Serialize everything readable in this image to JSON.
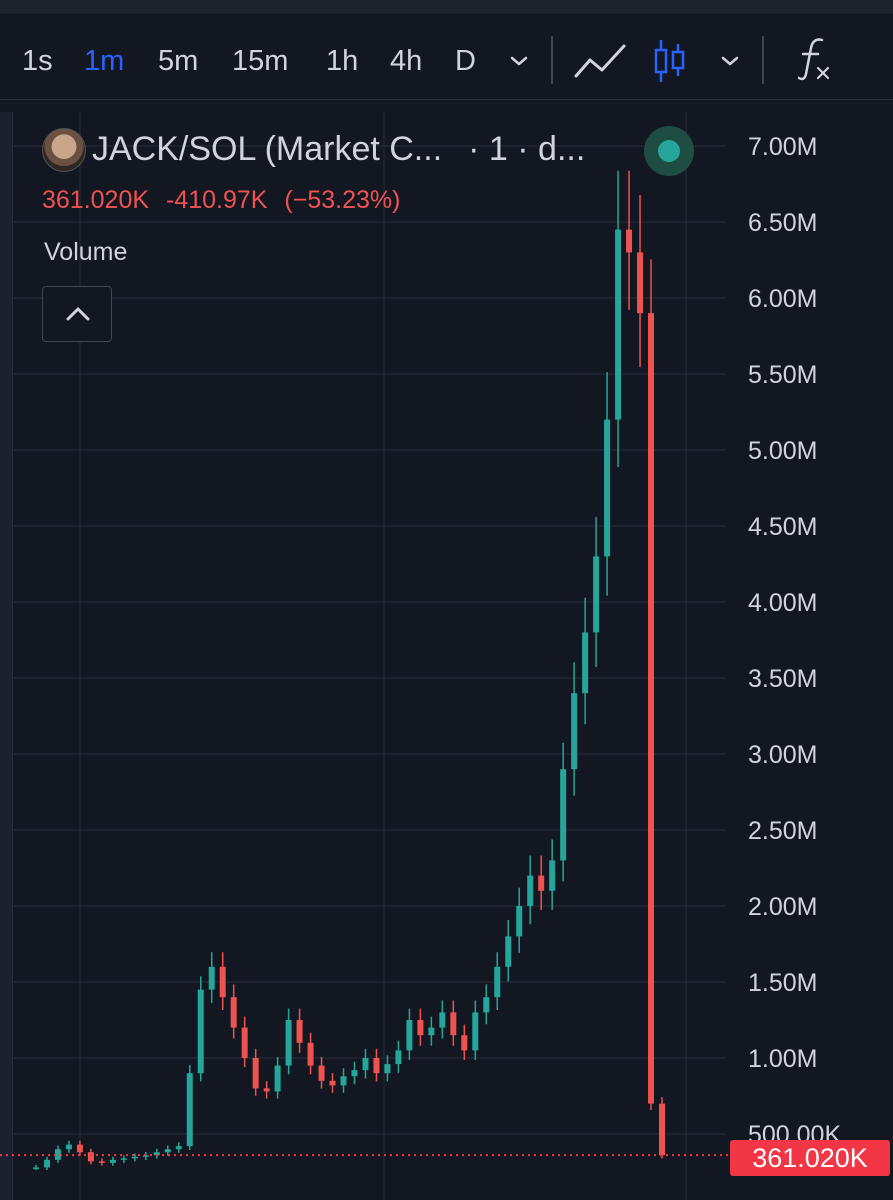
{
  "toolbar": {
    "timeframes": [
      "1s",
      "1m",
      "5m",
      "15m",
      "1h",
      "4h",
      "D"
    ],
    "active_timeframe": "1m"
  },
  "legend": {
    "title": "JACK/SOL (Market C...",
    "interval": "· 1 · d...",
    "last_value": "361.020K",
    "change": "-410.97K",
    "change_pct": "(−53.23%)",
    "volume_label": "Volume"
  },
  "colors": {
    "background": "#131722",
    "up": "#26a69a",
    "down": "#ef5350",
    "price_line": "#f23645",
    "grid": "#2a2e39",
    "active": "#2962ff",
    "live": "#26a69a"
  },
  "icons": [
    "chevron-down-icon",
    "line-chart-icon",
    "candlestick-icon",
    "function-icon",
    "chevron-up-icon"
  ],
  "price_tag": "361.020K",
  "chart_data": {
    "type": "line",
    "y_tick_labels": [
      "7.00M",
      "6.50M",
      "6.00M",
      "5.50M",
      "5.00M",
      "4.50M",
      "4.00M",
      "3.50M",
      "3.00M",
      "2.50M",
      "2.00M",
      "1.50M",
      "1.00M",
      "500.00K"
    ],
    "y_ticks": [
      7000000,
      6500000,
      6000000,
      5500000,
      5000000,
      4500000,
      4000000,
      3500000,
      3000000,
      2500000,
      2000000,
      1500000,
      1000000,
      500000
    ],
    "ylim": [
      280000,
      7300000
    ],
    "grid": true,
    "last_price": 361020,
    "series": [
      {
        "values": [
          280000,
          330000,
          400000,
          430000,
          380000,
          320000,
          310000,
          330000,
          340000,
          350000,
          360000,
          380000,
          400000,
          420000,
          900000,
          1450000,
          1600000,
          1400000,
          1200000,
          1000000,
          800000,
          780000,
          950000,
          1250000,
          1100000,
          950000,
          850000,
          820000,
          880000,
          920000,
          1000000,
          900000,
          960000,
          1050000,
          1250000,
          1150000,
          1200000,
          1300000,
          1150000,
          1050000,
          1300000,
          1400000,
          1600000,
          1800000,
          2000000,
          2200000,
          2100000,
          2300000,
          2900000,
          3400000,
          3800000,
          4300000,
          5200000,
          6450000,
          6300000,
          5900000,
          700000,
          361020
        ]
      }
    ]
  }
}
